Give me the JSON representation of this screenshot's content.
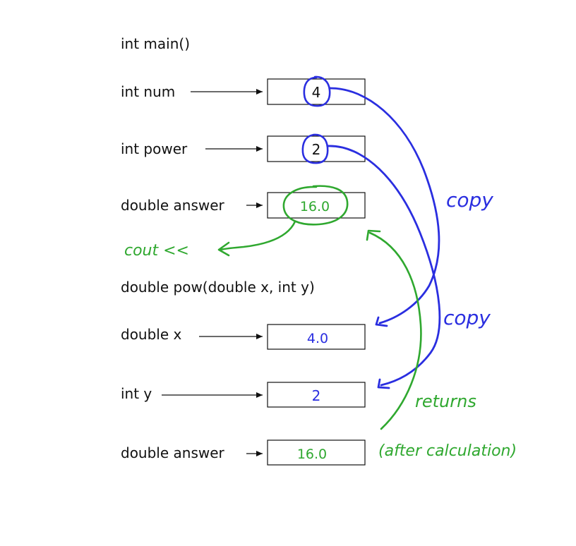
{
  "main_section": {
    "header": "int main()",
    "vars": [
      {
        "label": "int num",
        "value": "4"
      },
      {
        "label": "int power",
        "value": "2"
      },
      {
        "label": "double answer",
        "value": "16.0"
      }
    ]
  },
  "pow_section": {
    "header": "double pow(double x, int y)",
    "params": [
      {
        "label": "double x",
        "value": "4.0"
      },
      {
        "label": "int y",
        "value": "2"
      },
      {
        "label": "double answer",
        "value": "16.0"
      }
    ]
  },
  "annotations": {
    "copy_1": "copy",
    "copy_2": "copy",
    "cout": "cout <<",
    "returns": "returns",
    "after_calc": "(after calculation)"
  },
  "colors": {
    "copy_ink": "#2a2ee0",
    "return_ink": "#2fa82f",
    "text": "#111111"
  }
}
